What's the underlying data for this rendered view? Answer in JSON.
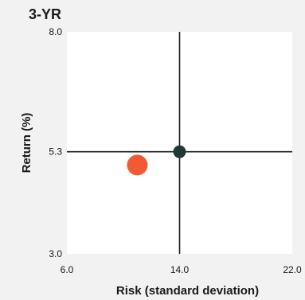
{
  "chart_data": {
    "type": "scatter",
    "title": "3-YR",
    "xlabel": "Risk (standard deviation)",
    "ylabel": "Return (%)",
    "xlim": [
      6.0,
      22.0
    ],
    "ylim": [
      3.0,
      8.0
    ],
    "x_ticks": [
      "6.0",
      "14.0",
      "22.0"
    ],
    "y_ticks": [
      "8.0",
      "5.3",
      "3.0"
    ],
    "crosshair": {
      "x": 14.0,
      "y": 5.3
    },
    "points": [
      {
        "x": 14.0,
        "y": 5.3,
        "color": "#1f3a36"
      },
      {
        "x": 11.0,
        "y": 5.0,
        "color": "#f15a35"
      }
    ],
    "grid": false
  }
}
